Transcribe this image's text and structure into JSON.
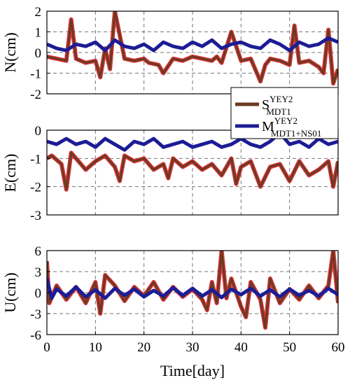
{
  "chart_data": [
    {
      "type": "line",
      "ylabel": "N(cm)",
      "xlim": [
        0,
        60
      ],
      "ylim": [
        -2,
        2
      ],
      "yticks": [
        -2,
        -1,
        0,
        1,
        2
      ],
      "xticks": [
        0,
        10,
        20,
        30,
        40,
        50,
        60
      ],
      "grid": true,
      "series": [
        {
          "label_main": "S",
          "label_sup": "YEY2",
          "label_sub": "MDT1",
          "color": "#6b3a1f",
          "highlight_color": "#d2121b",
          "x": [
            0,
            2,
            4,
            5,
            6,
            8,
            10,
            11,
            12,
            13,
            14,
            16,
            18,
            20,
            21,
            23,
            24,
            26,
            28,
            30,
            32,
            34,
            35,
            36,
            38,
            40,
            42,
            44,
            45,
            46,
            48,
            50,
            51,
            52,
            54,
            56,
            57,
            58,
            59,
            60
          ],
          "values": [
            -0.2,
            -0.3,
            -0.4,
            1.6,
            -0.3,
            -0.5,
            -0.4,
            -1.2,
            0.2,
            -0.8,
            2.0,
            -0.3,
            -0.4,
            -0.3,
            -0.5,
            -0.6,
            -1.0,
            -0.3,
            -0.4,
            -0.2,
            -0.3,
            -0.4,
            -0.2,
            -0.5,
            1.0,
            -0.4,
            -0.3,
            -1.4,
            -0.6,
            -0.3,
            -0.4,
            -0.6,
            1.3,
            -0.5,
            -0.4,
            -0.7,
            -1.0,
            1.1,
            -1.5,
            -0.8
          ]
        },
        {
          "label_main": "M",
          "label_sup": "YEY2",
          "label_sub": "MDT1+NS01",
          "color": "#1c1c96",
          "highlight_color": "#1c1c96",
          "x": [
            0,
            2,
            4,
            6,
            8,
            10,
            12,
            14,
            16,
            18,
            20,
            22,
            24,
            26,
            28,
            30,
            32,
            34,
            36,
            38,
            40,
            42,
            44,
            46,
            48,
            50,
            52,
            54,
            56,
            58,
            60
          ],
          "values": [
            0.4,
            0.2,
            0.1,
            0.4,
            0.3,
            0.5,
            0.1,
            0.6,
            0.3,
            0.2,
            0.4,
            0.1,
            0.5,
            0.3,
            0.2,
            0.5,
            0.3,
            0.6,
            0.2,
            0.4,
            0.5,
            0.3,
            0.2,
            0.6,
            0.4,
            0.1,
            0.5,
            0.3,
            0.4,
            0.7,
            0.5
          ]
        }
      ]
    },
    {
      "type": "line",
      "ylabel": "E(cm)",
      "xlim": [
        0,
        60
      ],
      "ylim": [
        -3,
        0
      ],
      "yticks": [
        -3,
        -2,
        -1,
        0
      ],
      "xticks": [
        0,
        10,
        20,
        30,
        40,
        50,
        60
      ],
      "grid": true,
      "series": [
        {
          "label_main": "S",
          "label_sup": "YEY2",
          "label_sub": "MDT1",
          "color": "#6b3a1f",
          "highlight_color": "#d2121b",
          "x": [
            0,
            1,
            3,
            4,
            5,
            6,
            8,
            10,
            12,
            14,
            15,
            16,
            18,
            20,
            22,
            24,
            25,
            26,
            28,
            30,
            32,
            34,
            36,
            38,
            39,
            40,
            42,
            44,
            46,
            48,
            50,
            52,
            54,
            56,
            58,
            59,
            60
          ],
          "values": [
            -1.0,
            -0.9,
            -1.2,
            -2.1,
            -0.8,
            -1.0,
            -1.4,
            -1.1,
            -0.9,
            -1.3,
            -1.8,
            -0.9,
            -1.1,
            -1.0,
            -1.4,
            -1.2,
            -1.7,
            -1.0,
            -1.3,
            -1.1,
            -1.4,
            -1.2,
            -1.6,
            -1.0,
            -1.9,
            -1.3,
            -1.1,
            -2.0,
            -1.3,
            -1.2,
            -1.8,
            -1.1,
            -1.6,
            -1.4,
            -1.1,
            -2.0,
            -1.1
          ]
        },
        {
          "label_main": "M",
          "label_sup": "YEY2",
          "label_sub": "MDT1+NS01",
          "color": "#1c1c96",
          "highlight_color": "#1c1c96",
          "x": [
            0,
            2,
            4,
            6,
            8,
            10,
            12,
            14,
            16,
            18,
            20,
            22,
            24,
            26,
            28,
            30,
            32,
            34,
            36,
            38,
            40,
            42,
            44,
            46,
            48,
            50,
            52,
            54,
            56,
            58,
            60
          ],
          "values": [
            -0.4,
            -0.5,
            -0.3,
            -0.5,
            -0.4,
            -0.6,
            -0.3,
            -0.5,
            -0.7,
            -0.4,
            -0.5,
            -0.3,
            -0.6,
            -0.5,
            -0.4,
            -0.6,
            -0.5,
            -0.4,
            -0.6,
            -0.5,
            -0.3,
            -0.5,
            -0.6,
            -0.4,
            -0.1,
            -0.5,
            -0.4,
            -0.6,
            -0.3,
            -0.5,
            -0.4
          ]
        }
      ]
    },
    {
      "type": "line",
      "ylabel": "U(cm)",
      "xlabel": "Time[day]",
      "xlim": [
        0,
        60
      ],
      "ylim": [
        -6,
        6
      ],
      "yticks": [
        -6,
        -3,
        0,
        3,
        6
      ],
      "xticks": [
        0,
        10,
        20,
        30,
        40,
        50,
        60
      ],
      "grid": true,
      "series": [
        {
          "label_main": "S",
          "label_sup": "YEY2",
          "label_sub": "MDT1",
          "color": "#6b3a1f",
          "highlight_color": "#d2121b",
          "x": [
            0,
            0.5,
            2,
            4,
            6,
            8,
            10,
            11,
            12,
            14,
            16,
            18,
            20,
            22,
            24,
            26,
            28,
            30,
            32,
            33,
            34,
            35,
            36,
            37,
            38,
            40,
            41,
            42,
            44,
            45,
            46,
            48,
            50,
            52,
            54,
            56,
            58,
            59,
            60
          ],
          "values": [
            4.5,
            -1.5,
            1.0,
            -1.0,
            0.8,
            -1.5,
            1.5,
            -3.0,
            2.5,
            1.0,
            -1.2,
            0.8,
            -0.5,
            1.5,
            -1.0,
            0.8,
            -0.6,
            0.5,
            -1.0,
            -2.5,
            1.5,
            -1.5,
            6.0,
            -0.8,
            2.0,
            -2.0,
            -3.5,
            1.5,
            -1.0,
            -5.0,
            2.0,
            -1.5,
            0.5,
            -1.0,
            1.0,
            -0.8,
            1.0,
            6.0,
            -1.5
          ]
        },
        {
          "label_main": "M",
          "label_sup": "YEY2",
          "label_sub": "MDT1+NS01",
          "color": "#1c1c96",
          "highlight_color": "#1c1c96",
          "x": [
            0,
            1,
            2,
            4,
            6,
            8,
            10,
            12,
            14,
            16,
            18,
            20,
            22,
            24,
            26,
            28,
            30,
            32,
            34,
            36,
            38,
            40,
            42,
            44,
            46,
            48,
            50,
            52,
            54,
            56,
            58,
            60
          ],
          "values": [
            2.0,
            -0.8,
            0.5,
            -0.5,
            0.8,
            -0.6,
            0.4,
            -0.8,
            0.6,
            -0.4,
            0.5,
            -0.6,
            0.3,
            -0.5,
            0.7,
            -0.4,
            0.6,
            -0.5,
            0.4,
            -0.7,
            0.5,
            -0.3,
            0.6,
            -0.5,
            0.4,
            -0.6,
            0.5,
            -0.4,
            0.3,
            -0.5,
            0.6,
            -0.3
          ]
        }
      ]
    }
  ]
}
